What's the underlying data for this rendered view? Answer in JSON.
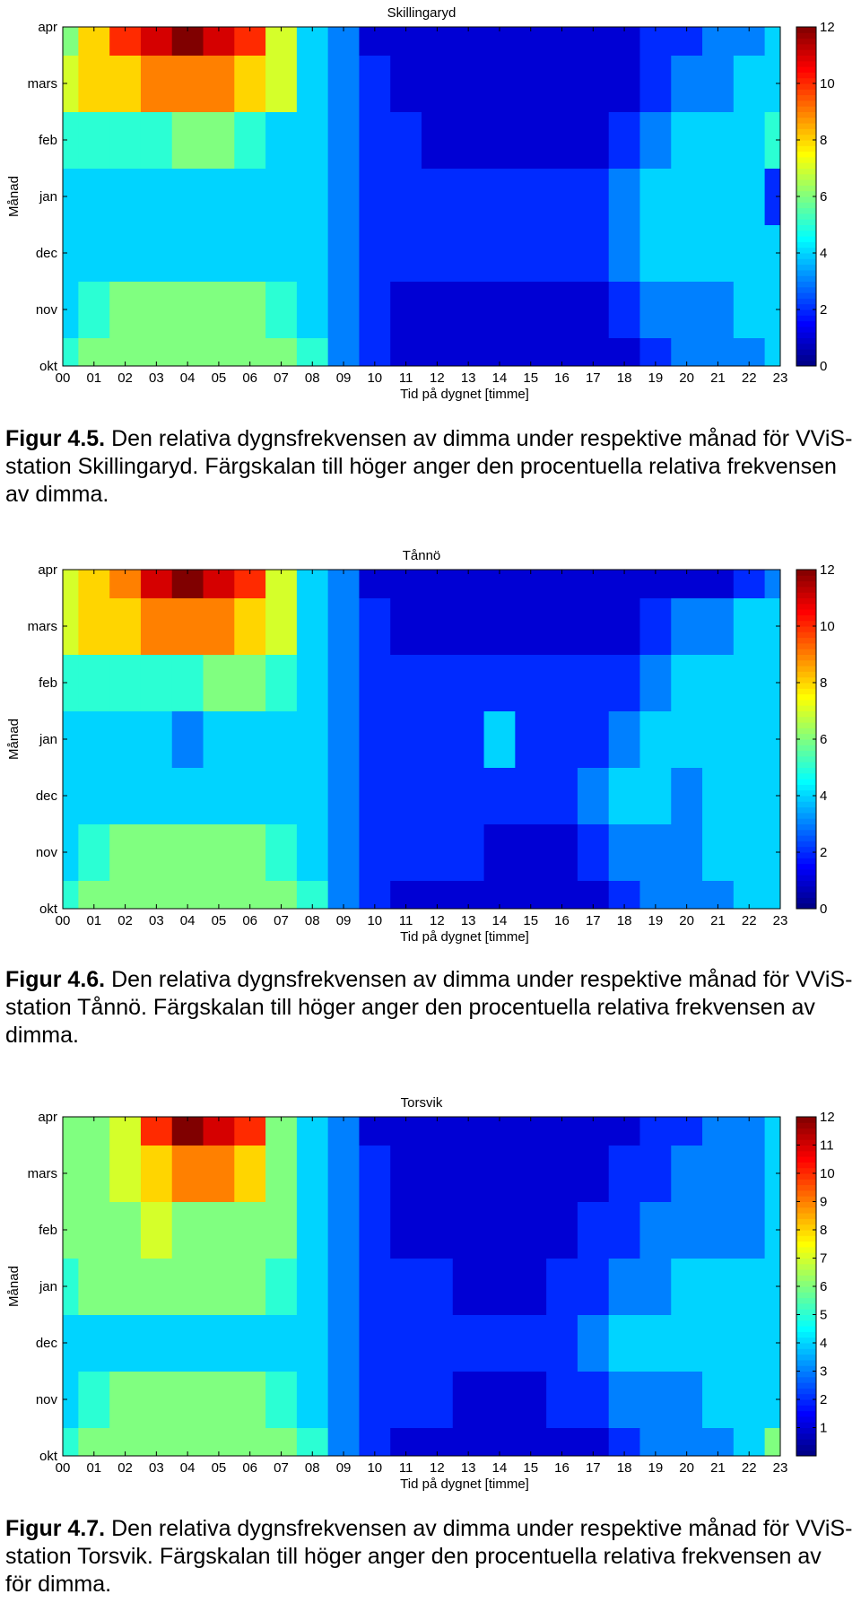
{
  "charts": [
    {
      "chart_data": {
        "type": "contour",
        "title": "Skillingaryd",
        "xlabel": "Tid på dygnet [timme]",
        "ylabel": "Månad",
        "x": [
          "00",
          "01",
          "02",
          "03",
          "04",
          "05",
          "06",
          "07",
          "08",
          "09",
          "10",
          "11",
          "12",
          "13",
          "14",
          "15",
          "16",
          "17",
          "18",
          "19",
          "20",
          "21",
          "22",
          "23"
        ],
        "y": [
          "okt",
          "nov",
          "dec",
          "jan",
          "feb",
          "mars",
          "apr"
        ],
        "colorbar": {
          "min": 0,
          "max": 12,
          "ticks": [
            0,
            2,
            4,
            6,
            8,
            10,
            12
          ]
        },
        "z": [
          [
            5,
            6,
            6,
            6,
            6,
            6,
            6,
            6,
            5,
            3,
            2,
            1,
            1,
            1,
            1,
            1,
            1,
            1,
            1,
            2,
            3,
            3,
            3,
            4
          ],
          [
            4,
            5,
            6,
            6,
            6,
            6,
            6,
            5,
            4,
            3,
            2,
            1,
            1,
            1,
            1,
            1,
            1,
            1,
            2,
            3,
            3,
            3,
            4,
            4
          ],
          [
            4,
            4,
            4,
            4,
            4,
            4,
            4,
            4,
            4,
            3,
            2,
            2,
            2,
            2,
            2,
            2,
            2,
            2,
            3,
            4,
            4,
            4,
            4,
            4
          ],
          [
            4,
            4,
            4,
            4,
            4,
            4,
            4,
            4,
            4,
            3,
            2,
            2,
            2,
            2,
            2,
            2,
            2,
            2,
            3,
            4,
            4,
            4,
            4,
            2
          ],
          [
            5,
            5,
            5,
            5,
            6,
            6,
            5,
            4,
            4,
            3,
            2,
            2,
            1,
            1,
            1,
            1,
            1,
            1,
            2,
            3,
            4,
            4,
            4,
            5
          ],
          [
            7,
            8,
            8,
            9,
            9,
            9,
            8,
            7,
            4,
            3,
            2,
            1,
            1,
            1,
            1,
            1,
            1,
            1,
            1,
            2,
            3,
            3,
            4,
            4
          ],
          [
            6,
            8,
            10,
            11,
            12,
            11,
            10,
            7,
            4,
            3,
            1,
            1,
            1,
            1,
            1,
            1,
            1,
            1,
            1,
            2,
            2,
            3,
            3,
            4
          ]
        ]
      },
      "caption": {
        "figure_label": "Figur 4.5.",
        "text": " Den relativa dygnsfrekvensen av dimma under respektive månad för VViS-station Skillingaryd. Färgskalan till höger anger den procentuella relativa frekvensen av dimma."
      }
    },
    {
      "chart_data": {
        "type": "contour",
        "title": "Tånnö",
        "xlabel": "Tid på dygnet [timme]",
        "ylabel": "Månad",
        "x": [
          "00",
          "01",
          "02",
          "03",
          "04",
          "05",
          "06",
          "07",
          "08",
          "09",
          "10",
          "11",
          "12",
          "13",
          "14",
          "15",
          "16",
          "17",
          "18",
          "19",
          "20",
          "21",
          "22",
          "23"
        ],
        "y": [
          "okt",
          "nov",
          "dec",
          "jan",
          "feb",
          "mars",
          "apr"
        ],
        "colorbar": {
          "min": 0,
          "max": 12,
          "ticks": [
            0,
            2,
            4,
            6,
            8,
            10,
            12
          ]
        },
        "z": [
          [
            5,
            6,
            6,
            6,
            6,
            6,
            6,
            6,
            5,
            3,
            2,
            1,
            1,
            1,
            1,
            1,
            1,
            1,
            2,
            3,
            3,
            3,
            4,
            4
          ],
          [
            4,
            5,
            6,
            6,
            6,
            6,
            6,
            5,
            4,
            3,
            2,
            2,
            2,
            2,
            1,
            1,
            1,
            2,
            3,
            3,
            3,
            4,
            4,
            4
          ],
          [
            4,
            4,
            4,
            4,
            4,
            4,
            4,
            4,
            4,
            3,
            2,
            2,
            2,
            2,
            2,
            2,
            2,
            3,
            4,
            4,
            3,
            4,
            4,
            4
          ],
          [
            4,
            4,
            4,
            4,
            3,
            4,
            4,
            4,
            4,
            3,
            2,
            2,
            2,
            2,
            4,
            2,
            2,
            2,
            3,
            4,
            4,
            4,
            4,
            4
          ],
          [
            5,
            5,
            5,
            5,
            5,
            6,
            6,
            5,
            4,
            3,
            2,
            2,
            2,
            2,
            2,
            2,
            2,
            2,
            2,
            3,
            4,
            4,
            4,
            4
          ],
          [
            7,
            8,
            8,
            9,
            9,
            9,
            8,
            7,
            4,
            3,
            2,
            1,
            1,
            1,
            1,
            1,
            1,
            1,
            1,
            2,
            3,
            3,
            4,
            4
          ],
          [
            7,
            8,
            9,
            11,
            12,
            11,
            10,
            7,
            4,
            3,
            1,
            1,
            1,
            1,
            1,
            1,
            1,
            1,
            1,
            1,
            1,
            1,
            2,
            3
          ]
        ]
      },
      "caption": {
        "figure_label": "Figur 4.6.",
        "text": " Den relativa dygnsfrekvensen av dimma under respektive månad för VViS-station Tånnö. Färgskalan till höger anger den procentuella relativa frekvensen av dimma."
      }
    },
    {
      "chart_data": {
        "type": "contour",
        "title": "Torsvik",
        "xlabel": "Tid på dygnet [timme]",
        "ylabel": "Månad",
        "x": [
          "00",
          "01",
          "02",
          "03",
          "04",
          "05",
          "06",
          "07",
          "08",
          "09",
          "10",
          "11",
          "12",
          "13",
          "14",
          "15",
          "16",
          "17",
          "18",
          "19",
          "20",
          "21",
          "22",
          "23"
        ],
        "y": [
          "okt",
          "nov",
          "dec",
          "jan",
          "feb",
          "mars",
          "apr"
        ],
        "colorbar": {
          "min": 0,
          "max": 12,
          "ticks": [
            1,
            2,
            3,
            4,
            5,
            6,
            7,
            8,
            9,
            10,
            11,
            12
          ]
        },
        "z": [
          [
            5,
            6,
            6,
            6,
            6,
            6,
            6,
            6,
            5,
            3,
            2,
            1,
            1,
            1,
            1,
            1,
            1,
            1,
            2,
            3,
            3,
            3,
            4,
            6
          ],
          [
            4,
            5,
            6,
            6,
            6,
            6,
            6,
            5,
            4,
            3,
            2,
            2,
            2,
            1,
            1,
            1,
            2,
            2,
            3,
            3,
            3,
            4,
            4,
            4
          ],
          [
            4,
            4,
            4,
            4,
            4,
            4,
            4,
            4,
            4,
            3,
            2,
            2,
            2,
            2,
            2,
            2,
            2,
            3,
            4,
            4,
            4,
            4,
            4,
            4
          ],
          [
            5,
            6,
            6,
            6,
            6,
            6,
            6,
            5,
            4,
            3,
            2,
            2,
            2,
            1,
            1,
            1,
            2,
            2,
            3,
            3,
            4,
            4,
            4,
            4
          ],
          [
            6,
            6,
            6,
            7,
            6,
            6,
            6,
            6,
            4,
            3,
            2,
            1,
            1,
            1,
            1,
            1,
            1,
            2,
            2,
            3,
            3,
            3,
            3,
            4
          ],
          [
            6,
            6,
            7,
            8,
            9,
            9,
            8,
            6,
            4,
            3,
            2,
            1,
            1,
            1,
            1,
            1,
            1,
            1,
            2,
            2,
            3,
            3,
            3,
            4
          ],
          [
            6,
            6,
            7,
            10,
            12,
            11,
            10,
            6,
            4,
            3,
            1,
            1,
            1,
            1,
            1,
            1,
            1,
            1,
            1,
            2,
            2,
            3,
            3,
            4
          ]
        ]
      },
      "caption": {
        "figure_label": "Figur 4.7.",
        "text": " Den relativa dygnsfrekvensen av dimma under respektive månad för VViS-station Torsvik. Färgskalan till höger anger den procentuella relativa frekvensen av för dimma."
      }
    }
  ]
}
